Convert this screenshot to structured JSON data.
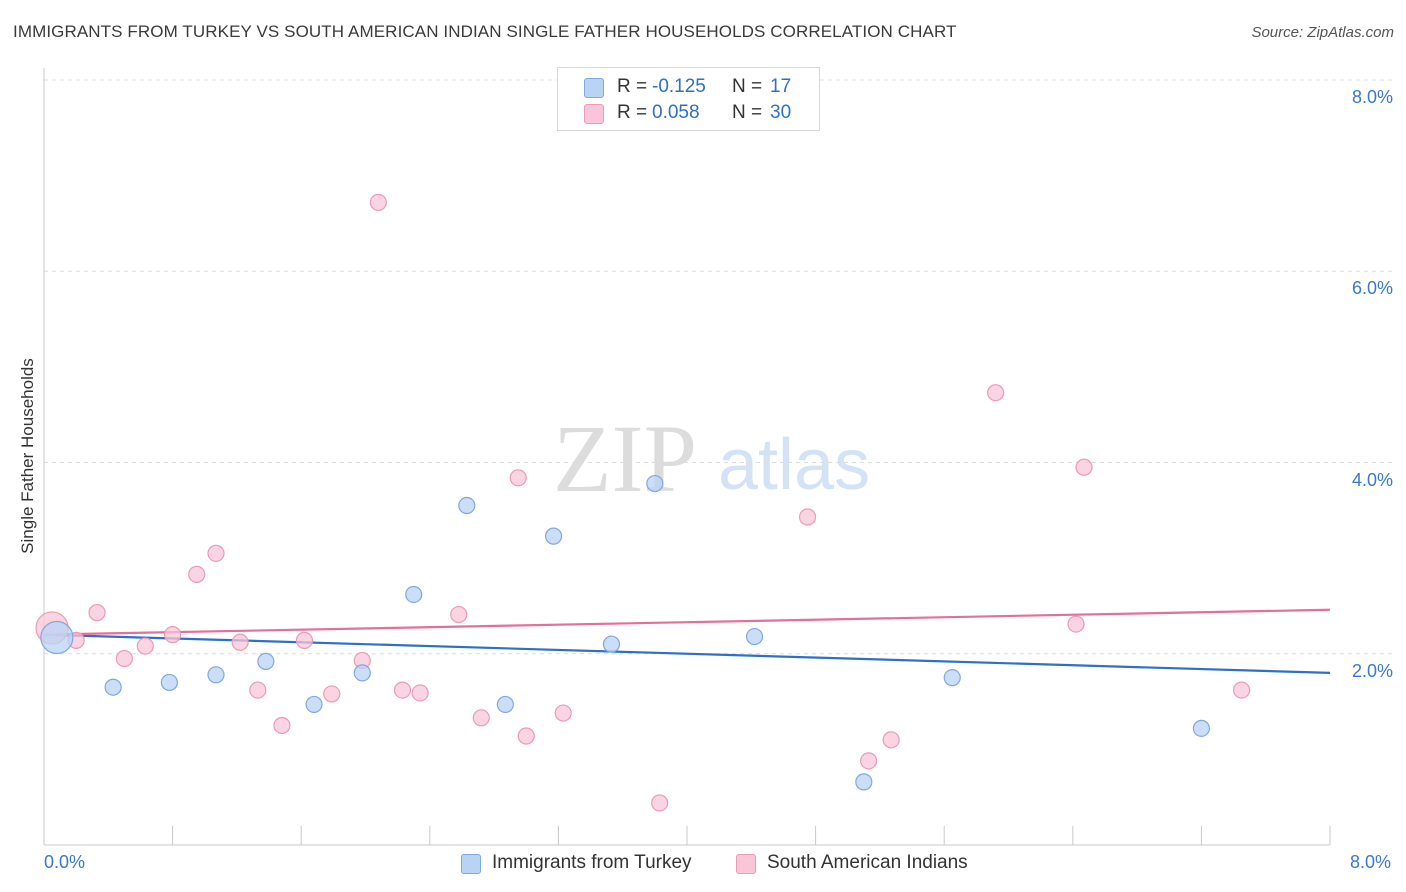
{
  "title": "IMMIGRANTS FROM TURKEY VS SOUTH AMERICAN INDIAN SINGLE FATHER HOUSEHOLDS CORRELATION CHART",
  "source": "Source: ZipAtlas.com",
  "watermark": {
    "zip": "ZIP",
    "atlas": "atlas"
  },
  "legend": {
    "rows": [
      {
        "r_label": "R =",
        "r_value": "-0.125",
        "n_label": "N =",
        "n_value": "17"
      },
      {
        "r_label": "R =",
        "r_value": "0.058",
        "n_label": "N =",
        "n_value": "30"
      }
    ]
  },
  "bottom_legend": {
    "series1": "Immigrants from Turkey",
    "series2": "South American Indians"
  },
  "x_axis": {
    "min_label": "0.0%",
    "max_label": "8.0%"
  },
  "colors": {
    "blue_fill": "#b9d3f5",
    "blue_stroke": "#7fa8e0",
    "blue_line": "#2e6fc9",
    "pink_fill": "#f8c6d6",
    "pink_stroke": "#ee9ab4",
    "pink_line": "#e56f98",
    "tick_label": "#3a78cc",
    "grid": "#dcdcdc"
  },
  "chart_data": {
    "type": "scatter",
    "title": "IMMIGRANTS FROM TURKEY VS SOUTH AMERICAN INDIAN SINGLE FATHER HOUSEHOLDS CORRELATION CHART",
    "xlabel": "",
    "ylabel": "Single Father Households",
    "xlim": [
      0,
      8
    ],
    "ylim": [
      0,
      8
    ],
    "y_ticks": [
      {
        "value": 2,
        "label": "2.0%"
      },
      {
        "value": 4,
        "label": "4.0%"
      },
      {
        "value": 6,
        "label": "6.0%"
      },
      {
        "value": 8,
        "label": "8.0%"
      }
    ],
    "grid": true,
    "legend_position": "top-center",
    "series": [
      {
        "name": "Immigrants from Turkey",
        "color": "#b9d3f5",
        "trend": {
          "x": [
            0,
            8
          ],
          "y": [
            2.2,
            1.8
          ]
        },
        "points": [
          {
            "x": 0.08,
            "y": 2.17,
            "big": true
          },
          {
            "x": 0.43,
            "y": 1.65
          },
          {
            "x": 0.78,
            "y": 1.7
          },
          {
            "x": 1.07,
            "y": 1.78
          },
          {
            "x": 1.38,
            "y": 1.92
          },
          {
            "x": 1.68,
            "y": 1.47
          },
          {
            "x": 1.98,
            "y": 1.8
          },
          {
            "x": 2.3,
            "y": 2.62
          },
          {
            "x": 2.63,
            "y": 3.55
          },
          {
            "x": 2.87,
            "y": 1.47
          },
          {
            "x": 3.17,
            "y": 3.23
          },
          {
            "x": 3.53,
            "y": 2.1
          },
          {
            "x": 3.8,
            "y": 3.78
          },
          {
            "x": 4.42,
            "y": 2.18
          },
          {
            "x": 5.1,
            "y": 0.66
          },
          {
            "x": 5.65,
            "y": 1.75
          },
          {
            "x": 7.2,
            "y": 1.22
          }
        ]
      },
      {
        "name": "South American Indians",
        "color": "#f8c6d6",
        "trend": {
          "x": [
            0,
            8
          ],
          "y": [
            2.2,
            2.46
          ]
        },
        "points": [
          {
            "x": 0.05,
            "y": 2.27,
            "big": true
          },
          {
            "x": 0.2,
            "y": 2.14
          },
          {
            "x": 0.33,
            "y": 2.43
          },
          {
            "x": 0.5,
            "y": 1.95
          },
          {
            "x": 0.63,
            "y": 2.08
          },
          {
            "x": 0.8,
            "y": 2.2
          },
          {
            "x": 0.95,
            "y": 2.83
          },
          {
            "x": 1.07,
            "y": 3.05
          },
          {
            "x": 1.22,
            "y": 2.12
          },
          {
            "x": 1.33,
            "y": 1.62
          },
          {
            "x": 1.48,
            "y": 1.25
          },
          {
            "x": 1.62,
            "y": 2.14
          },
          {
            "x": 1.79,
            "y": 1.58
          },
          {
            "x": 1.98,
            "y": 1.93
          },
          {
            "x": 2.08,
            "y": 6.72
          },
          {
            "x": 2.23,
            "y": 1.62
          },
          {
            "x": 2.34,
            "y": 1.59
          },
          {
            "x": 2.58,
            "y": 2.41
          },
          {
            "x": 2.72,
            "y": 1.33
          },
          {
            "x": 2.95,
            "y": 3.84
          },
          {
            "x": 3.0,
            "y": 1.14
          },
          {
            "x": 3.23,
            "y": 1.38
          },
          {
            "x": 3.83,
            "y": 0.44
          },
          {
            "x": 4.75,
            "y": 3.43
          },
          {
            "x": 5.13,
            "y": 0.88
          },
          {
            "x": 5.27,
            "y": 1.1
          },
          {
            "x": 5.92,
            "y": 4.73
          },
          {
            "x": 6.42,
            "y": 2.31
          },
          {
            "x": 6.47,
            "y": 3.95
          },
          {
            "x": 7.45,
            "y": 1.62
          }
        ]
      }
    ]
  }
}
